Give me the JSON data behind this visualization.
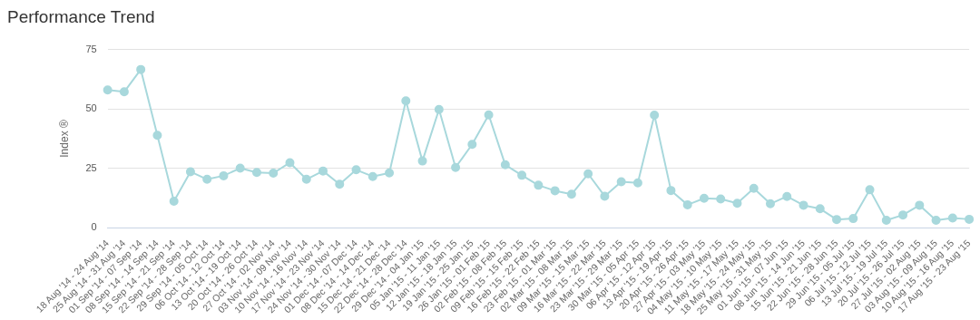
{
  "chart_data": {
    "type": "line",
    "title": "Performance Trend",
    "ylabel": "Index ®",
    "categories": [
      "18 Aug '14 - 24 Aug '14",
      "25 Aug '14 - 31 Aug '14",
      "01 Sep '14 - 07 Sep '14",
      "08 Sep '14 - 14 Sep '14",
      "15 Sep '14 - 21 Sep '14",
      "22 Sep '14 - 28 Sep '14",
      "29 Sep '14 - 05 Oct '14",
      "06 Oct '14 - 12 Oct '14",
      "13 Oct '14 - 19 Oct '14",
      "20 Oct '14 - 26 Oct '14",
      "27 Oct '14 - 02 Nov '14",
      "03 Nov '14 - 09 Nov '14",
      "10 Nov '14 - 16 Nov '14",
      "17 Nov '14 - 23 Nov '14",
      "24 Nov '14 - 30 Nov '14",
      "01 Dec '14 - 07 Dec '14",
      "08 Dec '14 - 14 Dec '14",
      "15 Dec '14 - 21 Dec '14",
      "22 Dec '14 - 28 Dec '14",
      "29 Dec '14 - 04 Jan '15",
      "05 Jan '15 - 11 Jan '15",
      "12 Jan '15 - 18 Jan '15",
      "19 Jan '15 - 25 Jan '15",
      "26 Jan '15 - 01 Feb '15",
      "02 Feb '15 - 08 Feb '15",
      "09 Feb '15 - 15 Feb '15",
      "16 Feb '15 - 22 Feb '15",
      "23 Feb '15 - 01 Mar '15",
      "02 Mar '15 - 08 Mar '15",
      "09 Mar '15 - 15 Mar '15",
      "16 Mar '15 - 22 Mar '15",
      "23 Mar '15 - 29 Mar '15",
      "30 Mar '15 - 05 Apr '15",
      "06 Apr '15 - 12 Apr '15",
      "13 Apr '15 - 19 Apr '15",
      "20 Apr '15 - 26 Apr '15",
      "27 Apr '15 - 03 May '15",
      "04 May '15 - 10 May '15",
      "11 May '15 - 17 May '15",
      "18 May '15 - 24 May '15",
      "25 May '15 - 31 May '15",
      "01 Jun '15 - 07 Jun '15",
      "08 Jun '15 - 14 Jun '15",
      "15 Jun '15 - 21 Jun '15",
      "22 Jun '15 - 28 Jun '15",
      "29 Jun '15 - 05 Jul '15",
      "06 Jul '15 - 12 Jul '15",
      "13 Jul '15 - 19 Jul '15",
      "20 Jul '15 - 26 Jul '15",
      "27 Jul '15 - 02 Aug '15",
      "03 Aug '15 - 09 Aug '15",
      "10 Aug '15 - 16 Aug '15",
      "17 Aug '15 - 23 Aug '15"
    ],
    "series": [
      {
        "color": "#a8d8dc",
        "values": [
          58,
          57.2,
          66.6,
          38.9,
          11.2,
          23.6,
          20.4,
          21.9,
          25.1,
          23.3,
          23,
          27.4,
          20.4,
          23.9,
          18.3,
          24.4,
          21.6,
          23.1,
          53.4,
          28.1,
          49.8,
          25.4,
          35.1,
          47.5,
          26.5,
          22.1,
          17.9,
          15.6,
          14.1,
          22.7,
          13.3,
          19.4,
          18.9,
          47.4,
          15.7,
          9.7,
          12.4,
          12.1,
          10.3,
          16.6,
          10.1,
          13.2,
          9.5,
          8,
          3.5,
          3.9,
          16,
          3.2,
          5.4,
          9.5,
          3.2,
          4.1,
          3.6
        ]
      }
    ],
    "ylim": [
      0,
      75
    ],
    "yticks": [
      0,
      25,
      50,
      75
    ],
    "grid": "y",
    "legend": false,
    "marker": "circle",
    "line_style": "solid"
  }
}
